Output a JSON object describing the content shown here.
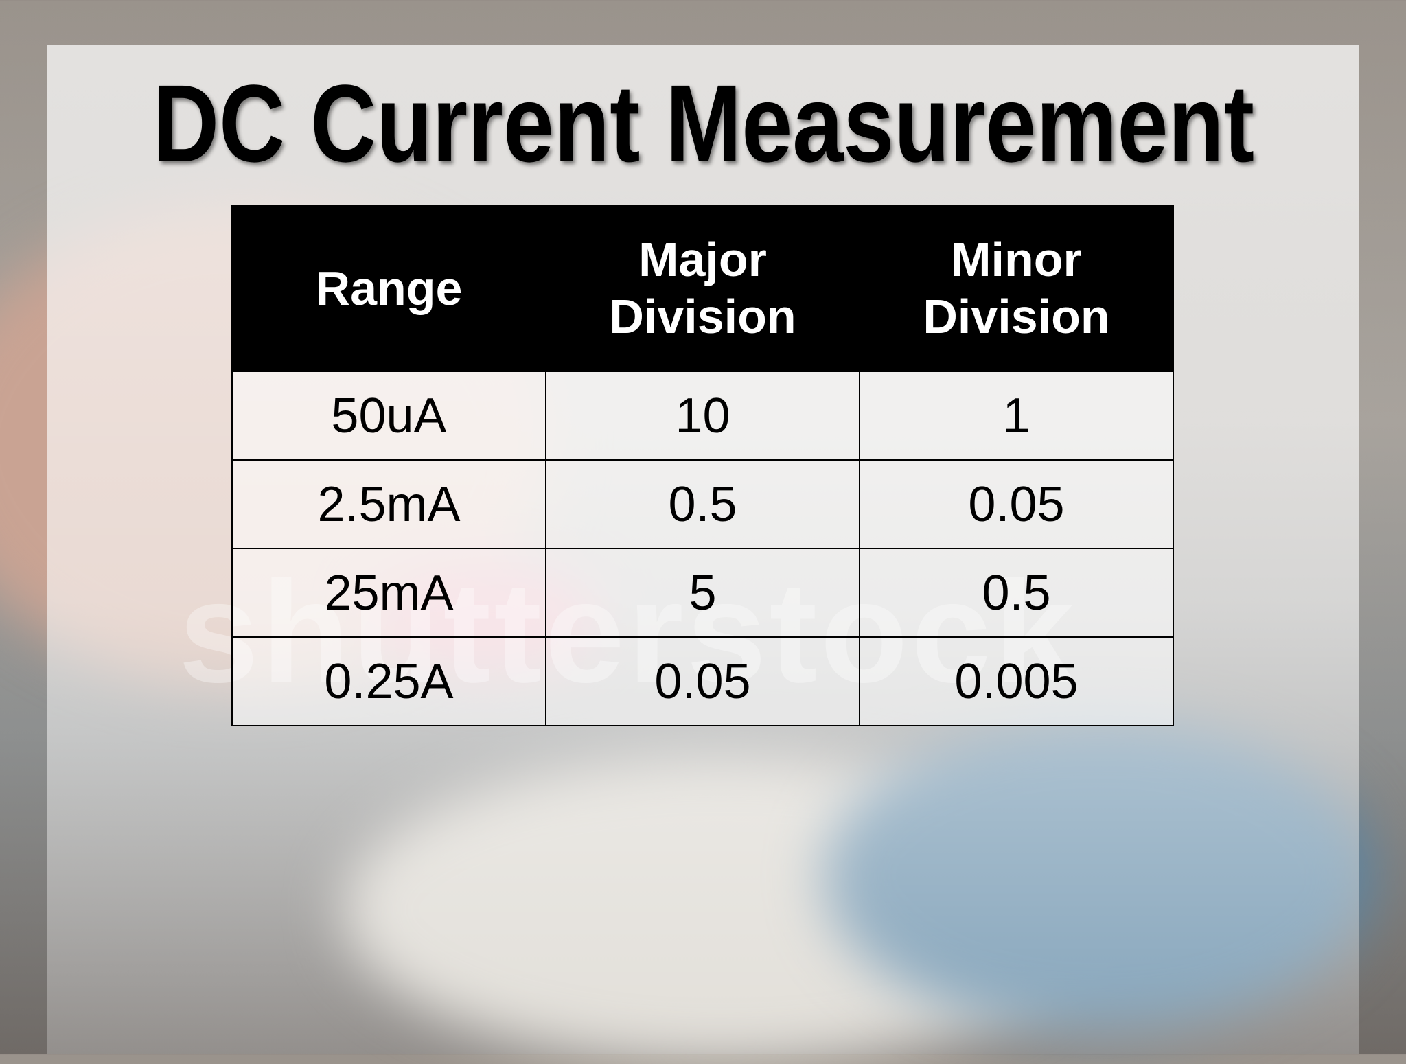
{
  "title": "DC Current Measurement",
  "watermark": "shutterstock",
  "table": {
    "header": [
      "Range",
      "Major Division",
      "Minor Division"
    ],
    "rows": [
      [
        "50uA",
        "10",
        "1"
      ],
      [
        "2.5mA",
        "0.5",
        "0.05"
      ],
      [
        "25mA",
        "5",
        "0.5"
      ],
      [
        "0.25A",
        "0.05",
        "0.005"
      ]
    ]
  }
}
